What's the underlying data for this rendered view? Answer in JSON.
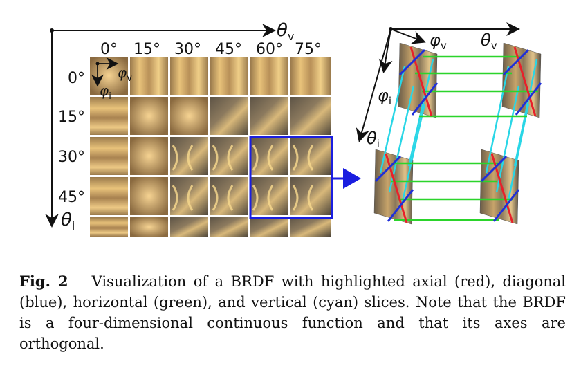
{
  "left_grid": {
    "theta_v_symbol": "θ",
    "theta_v_sub": "v",
    "theta_i_symbol": "θ",
    "theta_i_sub": "i",
    "phi_v_symbol": "φ",
    "phi_v_sub": "v",
    "phi_i_symbol": "φ",
    "phi_i_sub": "i",
    "column_labels": [
      "0°",
      "15°",
      "30°",
      "45°",
      "60°",
      "75°"
    ],
    "row_labels": [
      "0°",
      "15°",
      "30°",
      "45°"
    ]
  },
  "right_diagram": {
    "phi_v_symbol": "φ",
    "phi_v_sub": "v",
    "theta_v_symbol": "θ",
    "theta_v_sub": "v",
    "phi_i_symbol": "φ",
    "phi_i_sub": "i",
    "theta_i_symbol": "θ",
    "theta_i_sub": "i"
  },
  "slice_colors": {
    "axial": "#e8202a",
    "diagonal": "#1f2fd8",
    "horizontal": "#2bd42b",
    "vertical": "#29d6e6",
    "highlight": "#1a1ee0"
  },
  "caption": {
    "label": "Fig. 2",
    "text": "Visualization of a BRDF with highlighted axial (red), diagonal (blue), horizontal (green), and vertical (cyan) slices. Note that the BRDF is a four-dimensional continuous function and that its axes are orthogonal."
  }
}
